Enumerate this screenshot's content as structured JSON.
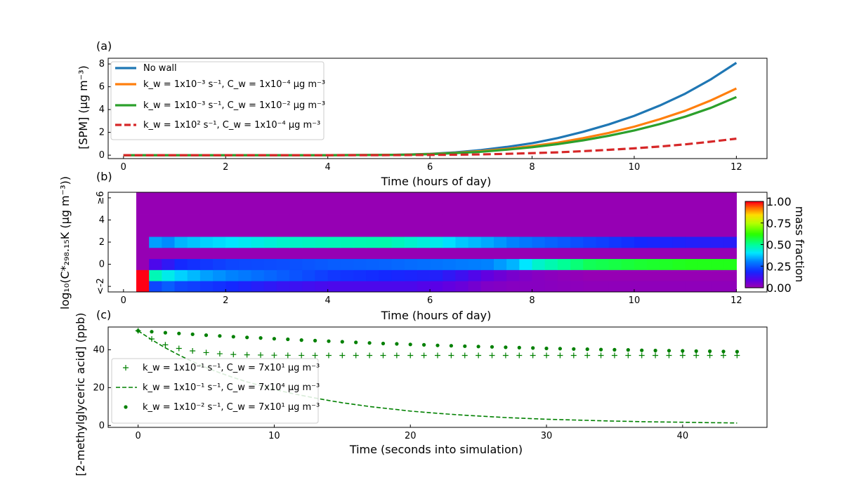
{
  "chart_data": [
    {
      "panel": "(a)",
      "type": "line",
      "xlabel": "Time (hours of day)",
      "ylabel": "[SPM] (µg m⁻³)",
      "xlim": [
        -0.3,
        12.6
      ],
      "ylim": [
        -0.3,
        8.5
      ],
      "xticks": [
        0,
        2,
        4,
        6,
        8,
        10,
        12
      ],
      "yticks": [
        0,
        2,
        4,
        6,
        8
      ],
      "legend_position": "upper-left",
      "x": [
        0,
        1,
        2,
        3,
        4,
        5,
        5.5,
        6,
        6.5,
        7,
        7.5,
        8,
        8.5,
        9,
        9.5,
        10,
        10.5,
        11,
        11.5,
        12
      ],
      "series": [
        {
          "name": "No wall",
          "color": "#1f77b4",
          "style": "solid",
          "values": [
            0,
            0,
            0,
            0,
            0,
            0.02,
            0.05,
            0.12,
            0.25,
            0.45,
            0.72,
            1.05,
            1.5,
            2.05,
            2.7,
            3.45,
            4.35,
            5.4,
            6.65,
            8.1
          ]
        },
        {
          "name": "k_w = 1x10⁻³ s⁻¹, C_w = 1x10⁻⁴ µg m⁻³",
          "color": "#ff7f0e",
          "style": "solid",
          "values": [
            0,
            0,
            0,
            0,
            0,
            0.02,
            0.04,
            0.1,
            0.2,
            0.35,
            0.55,
            0.8,
            1.1,
            1.5,
            1.95,
            2.5,
            3.15,
            3.9,
            4.8,
            5.85
          ]
        },
        {
          "name": "k_w = 1x10⁻³ s⁻¹, C_w = 1x10⁻² µg m⁻³",
          "color": "#2ca02c",
          "style": "solid",
          "values": [
            0,
            0,
            0,
            0,
            0,
            0.02,
            0.04,
            0.09,
            0.18,
            0.3,
            0.48,
            0.7,
            0.97,
            1.3,
            1.7,
            2.17,
            2.73,
            3.38,
            4.15,
            5.1
          ]
        },
        {
          "name": "k_w = 1x10² s⁻¹, C_w = 1x10⁻⁴ µg m⁻³",
          "color": "#d62728",
          "style": "dashed",
          "values": [
            0,
            0,
            0,
            0,
            0,
            0,
            0.01,
            0.02,
            0.04,
            0.07,
            0.12,
            0.18,
            0.25,
            0.35,
            0.47,
            0.6,
            0.76,
            0.95,
            1.18,
            1.45
          ]
        }
      ]
    },
    {
      "panel": "(b)",
      "type": "heatmap",
      "xlabel": "Time (hours of day)",
      "ylabel": "log₁₀(C*₂₉₈.₁₅K (µg m⁻³))",
      "xlim": [
        -0.3,
        12.6
      ],
      "ylim": [
        -2.5,
        6.5
      ],
      "xticks": [
        0,
        2,
        4,
        6,
        8,
        10,
        12
      ],
      "ytick_labels": [
        {
          "value": -2,
          "label": "<-2"
        },
        {
          "value": 0,
          "label": "0"
        },
        {
          "value": 2,
          "label": "2"
        },
        {
          "value": 4,
          "label": "4"
        },
        {
          "value": 6,
          "label": "≥6"
        }
      ],
      "colorbar": {
        "label": "mass fraction",
        "ticks": [
          "0.00",
          "0.25",
          "0.50",
          "0.75",
          "1.00"
        ],
        "range": [
          0,
          1
        ],
        "colormap": "gist_rainbow_r"
      },
      "row_bins": [
        -2,
        -1,
        0,
        1,
        2,
        3,
        4,
        5,
        6
      ],
      "time_bins": {
        "start": 0.25,
        "step": 0.25,
        "count": 47
      },
      "key_points": [
        0.25,
        0.5,
        0.75,
        1,
        1.5,
        2,
        3,
        4,
        5,
        5.5,
        6,
        6.5,
        7,
        7.5,
        8,
        9,
        10,
        11,
        12
      ],
      "rows": {
        "-2": [
          1.0,
          0.22,
          0.25,
          0.22,
          0.2,
          0.18,
          0.13,
          0.1,
          0.1,
          0.1,
          0.08,
          0.06,
          0.03,
          0.02,
          0.02,
          0.01,
          0.01,
          0.01,
          0.01
        ],
        "-1": [
          1.0,
          0.47,
          0.42,
          0.38,
          0.33,
          0.3,
          0.25,
          0.2,
          0.18,
          0.17,
          0.16,
          0.12,
          0.07,
          0.04,
          0.02,
          0.0,
          0.0,
          0.0,
          0.0
        ],
        "0": [
          0.0,
          0.1,
          0.14,
          0.18,
          0.2,
          0.22,
          0.23,
          0.25,
          0.26,
          0.27,
          0.28,
          0.29,
          0.3,
          0.35,
          0.45,
          0.55,
          0.58,
          0.6,
          0.6
        ],
        "1": [
          0.0,
          0.0,
          0.0,
          0.0,
          0.0,
          0.0,
          0.0,
          0.0,
          0.0,
          0.0,
          0.0,
          0.0,
          0.0,
          0.0,
          0.0,
          0.0,
          0.0,
          0.0,
          0.0
        ],
        "2": [
          0.0,
          0.33,
          0.31,
          0.35,
          0.38,
          0.4,
          0.45,
          0.47,
          0.48,
          0.45,
          0.42,
          0.37,
          0.34,
          0.3,
          0.27,
          0.22,
          0.18,
          0.16,
          0.15
        ],
        "3": [
          0.0,
          0.0,
          0.0,
          0.0,
          0.0,
          0.0,
          0.0,
          0.0,
          0.0,
          0.0,
          0.0,
          0.0,
          0.0,
          0.0,
          0.0,
          0.0,
          0.0,
          0.0,
          0.0
        ],
        "4": [
          0.0,
          0.0,
          0.0,
          0.0,
          0.0,
          0.0,
          0.0,
          0.0,
          0.0,
          0.0,
          0.0,
          0.0,
          0.0,
          0.0,
          0.0,
          0.0,
          0.0,
          0.0,
          0.0
        ],
        "5": [
          0.0,
          0.0,
          0.0,
          0.0,
          0.0,
          0.0,
          0.0,
          0.0,
          0.0,
          0.0,
          0.0,
          0.0,
          0.0,
          0.0,
          0.0,
          0.0,
          0.0,
          0.0,
          0.0
        ],
        "6": [
          0.0,
          0.0,
          0.0,
          0.0,
          0.0,
          0.0,
          0.0,
          0.0,
          0.0,
          0.0,
          0.0,
          0.0,
          0.0,
          0.0,
          0.0,
          0.0,
          0.0,
          0.0,
          0.0
        ]
      }
    },
    {
      "panel": "(c)",
      "type": "line",
      "xlabel": "Time (seconds into simulation)",
      "ylabel": "[2-methylglyceric acid] (ppb)",
      "xlim": [
        -2.2,
        46.2
      ],
      "ylim": [
        -1,
        52
      ],
      "xticks": [
        0,
        10,
        20,
        30,
        40
      ],
      "yticks": [
        0,
        20,
        40
      ],
      "legend_position": "lower-left",
      "x": [
        0,
        1,
        2,
        3,
        4,
        5,
        6,
        7,
        8,
        9,
        10,
        11,
        12,
        13,
        14,
        15,
        16,
        17,
        18,
        19,
        20,
        21,
        22,
        23,
        24,
        25,
        26,
        27,
        28,
        29,
        30,
        31,
        32,
        33,
        34,
        35,
        36,
        37,
        38,
        39,
        40,
        41,
        42,
        43,
        44
      ],
      "series": [
        {
          "name": "k_w = 1x10⁻¹ s⁻¹, C_w = 7x10¹ µg m⁻³",
          "color": "#008000",
          "style": "plus",
          "values": [
            50,
            45.7,
            42.6,
            40.7,
            39.4,
            38.5,
            37.9,
            37.5,
            37.3,
            37.2,
            37.1,
            37.05,
            37.02,
            37.01,
            37,
            37,
            37,
            37,
            37,
            37,
            37,
            37,
            37,
            37,
            37,
            37,
            37,
            37,
            37,
            37,
            37,
            37,
            37,
            37,
            37,
            37,
            37,
            37,
            37,
            37,
            37,
            37,
            37,
            37,
            37
          ]
        },
        {
          "name": "k_w = 1x10⁻¹ s⁻¹, C_w = 7x10⁴ µg m⁻³",
          "color": "#008000",
          "style": "dashed",
          "values": [
            50,
            45.3,
            41,
            37.2,
            33.7,
            30.6,
            27.8,
            25.3,
            23,
            21,
            19.1,
            17.4,
            15.9,
            14.5,
            13.2,
            12,
            11,
            10,
            9.2,
            8.4,
            7.6,
            7,
            6.4,
            5.9,
            5.4,
            5,
            4.6,
            4.2,
            3.9,
            3.6,
            3.3,
            3.1,
            2.9,
            2.7,
            2.5,
            2.3,
            2.2,
            2,
            1.9,
            1.8,
            1.7,
            1.6,
            1.5,
            1.4,
            1.3
          ]
        },
        {
          "name": "k_w = 1x10⁻² s⁻¹, C_w = 7x10¹ µg m⁻³",
          "color": "#008000",
          "style": "dots",
          "values": [
            50,
            49.5,
            49,
            48.6,
            48.2,
            47.7,
            47.3,
            46.9,
            46.5,
            46.2,
            45.8,
            45.5,
            45.1,
            44.8,
            44.5,
            44.2,
            43.9,
            43.6,
            43.3,
            43.1,
            42.8,
            42.6,
            42.3,
            42.1,
            41.9,
            41.7,
            41.5,
            41.3,
            41.1,
            40.9,
            40.7,
            40.6,
            40.4,
            40.3,
            40.1,
            40,
            39.9,
            39.7,
            39.6,
            39.5,
            39.4,
            39.3,
            39.2,
            39.1,
            39
          ]
        }
      ]
    }
  ]
}
